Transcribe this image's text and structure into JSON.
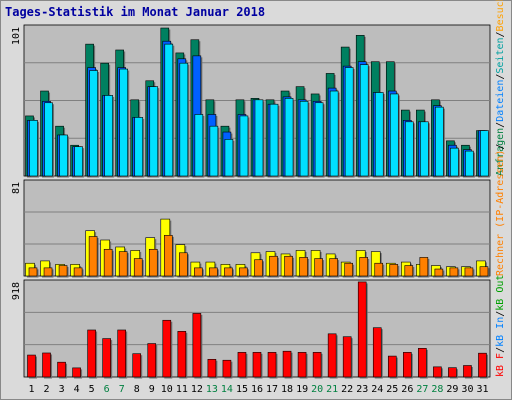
{
  "title": "Tages-Statistik im Monat Januar 2018",
  "legend": {
    "top": [
      {
        "text": "Anfragen",
        "color": "#008040"
      },
      {
        "text": "/",
        "color": "#000000"
      },
      {
        "text": "Dateien",
        "color": "#0080ff"
      },
      {
        "text": "/",
        "color": "#000000"
      },
      {
        "text": "Seiten",
        "color": "#00a0a0"
      },
      {
        "text": "/",
        "color": "#000000"
      },
      {
        "text": "Besuche",
        "color": "#ffa000"
      }
    ],
    "mid": [
      {
        "text": "Rechner (IP-Adressen)",
        "color": "#ff8000"
      },
      {
        "text": "/",
        "color": "#000000"
      },
      {
        "text": "",
        "color": "#000000"
      }
    ],
    "bottom": [
      {
        "text": "kB F",
        "color": "#ff0000"
      },
      {
        "text": "/",
        "color": "#000000"
      },
      {
        "text": "kB In",
        "color": "#0080ff"
      },
      {
        "text": "/",
        "color": "#000000"
      },
      {
        "text": "kB Out",
        "color": "#00a000"
      }
    ]
  },
  "colors": {
    "hits": "#008060",
    "files": "#0060ff",
    "pages": "#00e0ff",
    "visits": "#ffff00",
    "sites": "#ff8000",
    "kbytes": "#ff0000",
    "weekday_label": "#000000",
    "weekend_label": "#008040"
  },
  "chart_data": [
    {
      "type": "bar",
      "panel": "requests",
      "ymax_label": "101",
      "ylim": [
        0,
        101
      ],
      "categories": [
        "1",
        "2",
        "3",
        "4",
        "5",
        "6",
        "7",
        "8",
        "9",
        "10",
        "11",
        "12",
        "13",
        "14",
        "15",
        "16",
        "17",
        "18",
        "19",
        "20",
        "21",
        "22",
        "23",
        "24",
        "25",
        "26",
        "27",
        "28",
        "29",
        "30",
        "31"
      ],
      "weekend": [
        "6",
        "7",
        "13",
        "14",
        "20",
        "21",
        "27",
        "28"
      ],
      "series": [
        {
          "name": "Anfragen",
          "values": [
            41,
            58,
            34,
            21,
            90,
            77,
            86,
            52,
            65,
            101,
            84,
            93,
            52,
            34,
            52,
            53,
            52,
            58,
            61,
            56,
            70,
            88,
            96,
            78,
            78,
            45,
            45,
            52,
            24,
            21,
            31
          ]
        },
        {
          "name": "Dateien",
          "values": [
            38,
            51,
            28,
            20,
            74,
            55,
            74,
            40,
            61,
            92,
            80,
            82,
            42,
            30,
            42,
            52,
            49,
            54,
            52,
            51,
            60,
            75,
            78,
            57,
            58,
            38,
            37,
            48,
            21,
            18,
            31
          ]
        },
        {
          "name": "Seiten",
          "values": [
            38,
            50,
            28,
            20,
            72,
            55,
            73,
            40,
            61,
            90,
            77,
            42,
            34,
            25,
            41,
            52,
            49,
            53,
            51,
            50,
            58,
            74,
            76,
            57,
            56,
            37,
            37,
            47,
            19,
            17,
            31
          ]
        }
      ]
    },
    {
      "type": "bar",
      "panel": "visits",
      "ymax_label": "81",
      "ylim": [
        0,
        81
      ],
      "categories": [
        "1",
        "2",
        "3",
        "4",
        "5",
        "6",
        "7",
        "8",
        "9",
        "10",
        "11",
        "12",
        "13",
        "14",
        "15",
        "16",
        "17",
        "18",
        "19",
        "20",
        "21",
        "22",
        "23",
        "24",
        "25",
        "26",
        "27",
        "28",
        "29",
        "30",
        "31"
      ],
      "series": [
        {
          "name": "Besuche",
          "values": [
            11,
            13,
            10,
            10,
            39,
            31,
            25,
            22,
            33,
            49,
            27,
            12,
            12,
            10,
            10,
            20,
            21,
            19,
            22,
            22,
            19,
            12,
            22,
            21,
            11,
            12,
            10,
            9,
            8,
            8,
            13
          ]
        },
        {
          "name": "Rechner",
          "values": [
            7,
            7,
            9,
            7,
            34,
            23,
            21,
            15,
            23,
            35,
            20,
            7,
            7,
            7,
            7,
            14,
            17,
            17,
            16,
            15,
            15,
            11,
            16,
            11,
            10,
            9,
            16,
            6,
            7,
            7,
            8
          ]
        }
      ]
    },
    {
      "type": "bar",
      "panel": "kbytes",
      "ymax_label": "918",
      "ylim": [
        0,
        918
      ],
      "categories": [
        "1",
        "2",
        "3",
        "4",
        "5",
        "6",
        "7",
        "8",
        "9",
        "10",
        "11",
        "12",
        "13",
        "14",
        "15",
        "16",
        "17",
        "18",
        "19",
        "20",
        "21",
        "22",
        "23",
        "24",
        "25",
        "26",
        "27",
        "28",
        "29",
        "30",
        "31"
      ],
      "series": [
        {
          "name": "kB F",
          "values": [
            212,
            232,
            143,
            88,
            454,
            371,
            454,
            225,
            323,
            548,
            441,
            614,
            171,
            162,
            238,
            238,
            238,
            249,
            238,
            238,
            417,
            389,
            918,
            476,
            202,
            238,
            277,
            98,
            90,
            111,
            230
          ]
        }
      ]
    }
  ]
}
